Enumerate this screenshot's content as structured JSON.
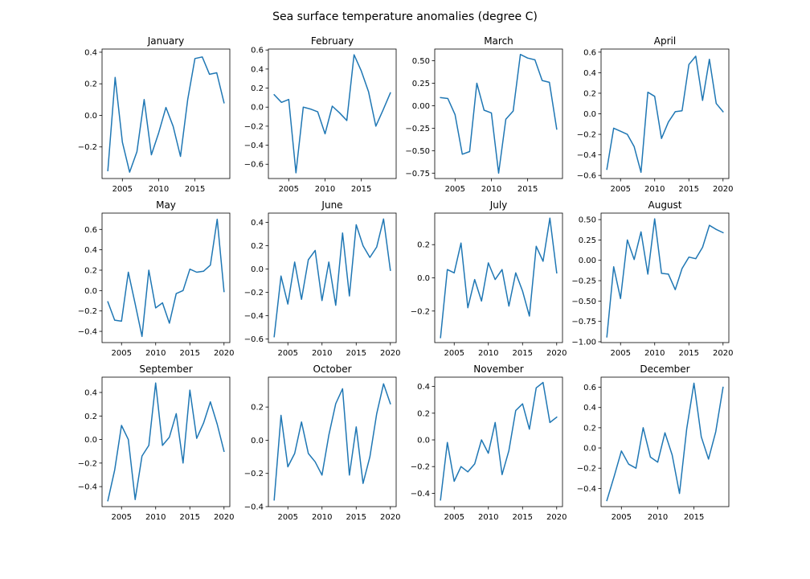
{
  "title": "Sea surface temperature anomalies (degree C)",
  "series_color": "#1f77b4",
  "chart_data": [
    {
      "type": "line",
      "title": "January",
      "xlim": [
        2002.2,
        2019.8
      ],
      "ylim": [
        -0.4,
        0.42
      ],
      "x": [
        2003,
        2004,
        2005,
        2006,
        2007,
        2008,
        2009,
        2010,
        2011,
        2012,
        2013,
        2014,
        2015,
        2016,
        2017,
        2018,
        2019
      ],
      "y": [
        -0.35,
        0.24,
        -0.17,
        -0.36,
        -0.23,
        0.1,
        -0.25,
        -0.11,
        0.05,
        -0.07,
        -0.26,
        0.1,
        0.36,
        0.37,
        0.26,
        0.27,
        0.08
      ],
      "xticks": [
        2005,
        2010,
        2015
      ],
      "xtick_labels": [
        "2005",
        "2010",
        "2015"
      ],
      "yticks": [
        -0.2,
        0.0,
        0.2,
        0.4
      ],
      "ytick_labels": [
        "−0.2",
        "0.0",
        "0.2",
        "0.4"
      ]
    },
    {
      "type": "line",
      "title": "February",
      "xlim": [
        2002.2,
        2019.8
      ],
      "ylim": [
        -0.75,
        0.61
      ],
      "x": [
        2003,
        2004,
        2005,
        2006,
        2007,
        2008,
        2009,
        2010,
        2011,
        2012,
        2013,
        2014,
        2015,
        2016,
        2017,
        2018,
        2019
      ],
      "y": [
        0.13,
        0.05,
        0.08,
        -0.69,
        0.0,
        -0.02,
        -0.05,
        -0.28,
        0.01,
        -0.06,
        -0.14,
        0.55,
        0.38,
        0.16,
        -0.2,
        -0.03,
        0.15
      ],
      "xticks": [
        2005,
        2010,
        2015
      ],
      "xtick_labels": [
        "2005",
        "2010",
        "2015"
      ],
      "yticks": [
        -0.6,
        -0.4,
        -0.2,
        0.0,
        0.2,
        0.4,
        0.6
      ],
      "ytick_labels": [
        "−0.6",
        "−0.4",
        "−0.2",
        "0.0",
        "0.2",
        "0.4",
        "0.6"
      ]
    },
    {
      "type": "line",
      "title": "March",
      "xlim": [
        2002.2,
        2019.8
      ],
      "ylim": [
        -0.81,
        0.63
      ],
      "x": [
        2003,
        2004,
        2005,
        2006,
        2007,
        2008,
        2009,
        2010,
        2011,
        2012,
        2013,
        2014,
        2015,
        2016,
        2017,
        2018,
        2019
      ],
      "y": [
        0.09,
        0.08,
        -0.1,
        -0.54,
        -0.51,
        0.25,
        -0.05,
        -0.08,
        -0.75,
        -0.15,
        -0.06,
        0.57,
        0.53,
        0.51,
        0.28,
        0.26,
        -0.26
      ],
      "xticks": [
        2005,
        2010,
        2015
      ],
      "xtick_labels": [
        "2005",
        "2010",
        "2015"
      ],
      "yticks": [
        -0.75,
        -0.5,
        -0.25,
        0.0,
        0.25,
        0.5
      ],
      "ytick_labels": [
        "−0.75",
        "−0.50",
        "−0.25",
        "0.00",
        "0.25",
        "0.50"
      ]
    },
    {
      "type": "line",
      "title": "April",
      "xlim": [
        2002.15,
        2020.85
      ],
      "ylim": [
        -0.63,
        0.63
      ],
      "x": [
        2003,
        2004,
        2005,
        2006,
        2007,
        2008,
        2009,
        2010,
        2011,
        2012,
        2013,
        2014,
        2015,
        2016,
        2017,
        2018,
        2019,
        2020
      ],
      "y": [
        -0.54,
        -0.14,
        -0.17,
        -0.2,
        -0.32,
        -0.57,
        0.21,
        0.17,
        -0.24,
        -0.08,
        0.02,
        0.03,
        0.48,
        0.56,
        0.13,
        0.53,
        0.1,
        0.02
      ],
      "xticks": [
        2005,
        2010,
        2015,
        2020
      ],
      "xtick_labels": [
        "2005",
        "2010",
        "2015",
        "2020"
      ],
      "yticks": [
        -0.6,
        -0.4,
        -0.2,
        0.0,
        0.2,
        0.4,
        0.6
      ],
      "ytick_labels": [
        "−0.6",
        "−0.4",
        "−0.2",
        "0.0",
        "0.2",
        "0.4",
        "0.6"
      ]
    },
    {
      "type": "line",
      "title": "May",
      "xlim": [
        2002.15,
        2020.85
      ],
      "ylim": [
        -0.51,
        0.76
      ],
      "x": [
        2003,
        2004,
        2005,
        2006,
        2007,
        2008,
        2009,
        2010,
        2011,
        2012,
        2013,
        2014,
        2015,
        2016,
        2017,
        2018,
        2019,
        2020
      ],
      "y": [
        -0.11,
        -0.29,
        -0.3,
        0.18,
        -0.13,
        -0.45,
        0.2,
        -0.17,
        -0.12,
        -0.32,
        -0.03,
        0.0,
        0.21,
        0.18,
        0.19,
        0.25,
        0.7,
        -0.01
      ],
      "xticks": [
        2005,
        2010,
        2015,
        2020
      ],
      "xtick_labels": [
        "2005",
        "2010",
        "2015",
        "2020"
      ],
      "yticks": [
        -0.4,
        -0.2,
        0.0,
        0.2,
        0.4,
        0.6
      ],
      "ytick_labels": [
        "−0.4",
        "−0.2",
        "0.0",
        "0.2",
        "0.4",
        "0.6"
      ]
    },
    {
      "type": "line",
      "title": "June",
      "xlim": [
        2002.15,
        2020.85
      ],
      "ylim": [
        -0.63,
        0.48
      ],
      "x": [
        2003,
        2004,
        2005,
        2006,
        2007,
        2008,
        2009,
        2010,
        2011,
        2012,
        2013,
        2014,
        2015,
        2016,
        2017,
        2018,
        2019,
        2020
      ],
      "y": [
        -0.58,
        -0.06,
        -0.3,
        0.06,
        -0.26,
        0.08,
        0.16,
        -0.27,
        0.06,
        -0.31,
        0.31,
        -0.23,
        0.38,
        0.2,
        0.1,
        0.19,
        0.43,
        -0.01
      ],
      "xticks": [
        2005,
        2010,
        2015,
        2020
      ],
      "xtick_labels": [
        "2005",
        "2010",
        "2015",
        "2020"
      ],
      "yticks": [
        -0.6,
        -0.4,
        -0.2,
        0.0,
        0.2,
        0.4
      ],
      "ytick_labels": [
        "−0.6",
        "−0.4",
        "−0.2",
        "0.0",
        "0.2",
        "0.4"
      ]
    },
    {
      "type": "line",
      "title": "July",
      "xlim": [
        2002.15,
        2020.85
      ],
      "ylim": [
        -0.39,
        0.39
      ],
      "x": [
        2003,
        2004,
        2005,
        2006,
        2007,
        2008,
        2009,
        2010,
        2011,
        2012,
        2013,
        2014,
        2015,
        2016,
        2017,
        2018,
        2019,
        2020
      ],
      "y": [
        -0.36,
        0.05,
        0.03,
        0.21,
        -0.18,
        -0.01,
        -0.14,
        0.09,
        -0.01,
        0.05,
        -0.17,
        0.03,
        -0.08,
        -0.23,
        0.19,
        0.1,
        0.36,
        0.03
      ],
      "xticks": [
        2005,
        2010,
        2015,
        2020
      ],
      "xtick_labels": [
        "2005",
        "2010",
        "2015",
        "2020"
      ],
      "yticks": [
        -0.2,
        0.0,
        0.2
      ],
      "ytick_labels": [
        "−0.2",
        "0.0",
        "0.2"
      ]
    },
    {
      "type": "line",
      "title": "August",
      "xlim": [
        2002.15,
        2020.85
      ],
      "ylim": [
        -1.01,
        0.58
      ],
      "x": [
        2003,
        2004,
        2005,
        2006,
        2007,
        2008,
        2009,
        2010,
        2011,
        2012,
        2013,
        2014,
        2015,
        2016,
        2017,
        2018,
        2019,
        2020
      ],
      "y": [
        -0.94,
        -0.08,
        -0.47,
        0.25,
        0.01,
        0.35,
        -0.17,
        0.51,
        -0.16,
        -0.17,
        -0.36,
        -0.1,
        0.04,
        0.02,
        0.16,
        0.43,
        0.38,
        0.34
      ],
      "xticks": [
        2005,
        2010,
        2015,
        2020
      ],
      "xtick_labels": [
        "2005",
        "2010",
        "2015",
        "2020"
      ],
      "yticks": [
        -1.0,
        -0.75,
        -0.5,
        -0.25,
        0.0,
        0.25,
        0.5
      ],
      "ytick_labels": [
        "−1.00",
        "−0.75",
        "−0.50",
        "−0.25",
        "0.00",
        "0.25",
        "0.50"
      ]
    },
    {
      "type": "line",
      "title": "September",
      "xlim": [
        2002.15,
        2020.85
      ],
      "ylim": [
        -0.57,
        0.53
      ],
      "x": [
        2003,
        2004,
        2005,
        2006,
        2007,
        2008,
        2009,
        2010,
        2011,
        2012,
        2013,
        2014,
        2015,
        2016,
        2017,
        2018,
        2019,
        2020
      ],
      "y": [
        -0.52,
        -0.26,
        0.12,
        0.0,
        -0.51,
        -0.14,
        -0.05,
        0.48,
        -0.05,
        0.02,
        0.22,
        -0.2,
        0.42,
        0.01,
        0.14,
        0.32,
        0.13,
        -0.1
      ],
      "xticks": [
        2005,
        2010,
        2015,
        2020
      ],
      "xtick_labels": [
        "2005",
        "2010",
        "2015",
        "2020"
      ],
      "yticks": [
        -0.4,
        -0.2,
        0.0,
        0.2,
        0.4
      ],
      "ytick_labels": [
        "−0.4",
        "−0.2",
        "0.0",
        "0.2",
        "0.4"
      ]
    },
    {
      "type": "line",
      "title": "October",
      "xlim": [
        2002.15,
        2020.85
      ],
      "ylim": [
        -0.4,
        0.38
      ],
      "x": [
        2003,
        2004,
        2005,
        2006,
        2007,
        2008,
        2009,
        2010,
        2011,
        2012,
        2013,
        2014,
        2015,
        2016,
        2017,
        2018,
        2019,
        2020
      ],
      "y": [
        -0.36,
        0.15,
        -0.16,
        -0.08,
        0.11,
        -0.08,
        -0.13,
        -0.21,
        0.03,
        0.22,
        0.31,
        -0.21,
        0.08,
        -0.26,
        -0.1,
        0.16,
        0.34,
        0.22
      ],
      "xticks": [
        2005,
        2010,
        2015,
        2020
      ],
      "xtick_labels": [
        "2005",
        "2010",
        "2015",
        "2020"
      ],
      "yticks": [
        -0.4,
        -0.2,
        0.0,
        0.2
      ],
      "ytick_labels": [
        "−0.4",
        "−0.2",
        "0.0",
        "0.2"
      ]
    },
    {
      "type": "line",
      "title": "November",
      "xlim": [
        2002.15,
        2020.85
      ],
      "ylim": [
        -0.5,
        0.47
      ],
      "x": [
        2003,
        2004,
        2005,
        2006,
        2007,
        2008,
        2009,
        2010,
        2011,
        2012,
        2013,
        2014,
        2015,
        2016,
        2017,
        2018,
        2019,
        2020
      ],
      "y": [
        -0.45,
        -0.02,
        -0.31,
        -0.2,
        -0.24,
        -0.18,
        0.0,
        -0.1,
        0.13,
        -0.26,
        -0.08,
        0.22,
        0.27,
        0.08,
        0.39,
        0.43,
        0.13,
        0.17
      ],
      "xticks": [
        2005,
        2010,
        2015,
        2020
      ],
      "xtick_labels": [
        "2005",
        "2010",
        "2015",
        "2020"
      ],
      "yticks": [
        -0.4,
        -0.2,
        0.0,
        0.2,
        0.4
      ],
      "ytick_labels": [
        "−0.4",
        "−0.2",
        "0.0",
        "0.2",
        "0.4"
      ]
    },
    {
      "type": "line",
      "title": "December",
      "xlim": [
        2002.2,
        2019.8
      ],
      "ylim": [
        -0.58,
        0.7
      ],
      "x": [
        2003,
        2004,
        2005,
        2006,
        2007,
        2008,
        2009,
        2010,
        2011,
        2012,
        2013,
        2014,
        2015,
        2016,
        2017,
        2018,
        2019
      ],
      "y": [
        -0.52,
        -0.28,
        -0.03,
        -0.16,
        -0.2,
        0.2,
        -0.09,
        -0.14,
        0.15,
        -0.07,
        -0.45,
        0.19,
        0.64,
        0.11,
        -0.11,
        0.16,
        0.6
      ],
      "xticks": [
        2005,
        2010,
        2015
      ],
      "xtick_labels": [
        "2005",
        "2010",
        "2015"
      ],
      "yticks": [
        -0.4,
        -0.2,
        0.0,
        0.2,
        0.4,
        0.6
      ],
      "ytick_labels": [
        "−0.4",
        "−0.2",
        "0.0",
        "0.2",
        "0.4",
        "0.6"
      ]
    }
  ]
}
